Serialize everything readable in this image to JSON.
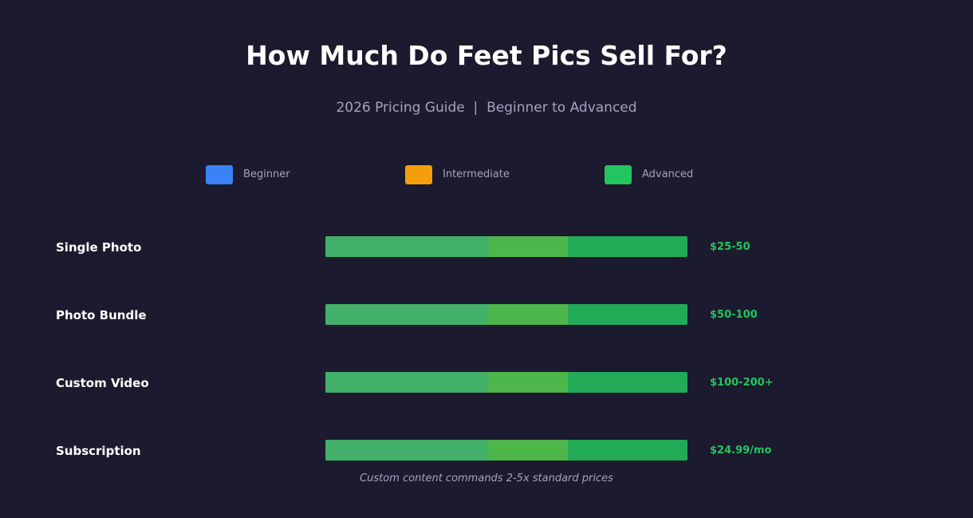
{
  "chart_data": {
    "type": "bar",
    "title": "How Much Do Feet Pics Sell For?",
    "subtitle": "2026 Pricing Guide  |  Beginner to Advanced",
    "legend": {
      "placement": "top",
      "items": [
        {
          "label": "Beginner",
          "color": "#3b82f6"
        },
        {
          "label": "Intermediate",
          "color": "#f59e0b"
        },
        {
          "label": "Advanced",
          "color": "#22c55e"
        }
      ]
    },
    "categories": [
      "Single Photo",
      "Photo Bundle",
      "Custom Video",
      "Subscription"
    ],
    "value_labels": [
      "$25-50",
      "$50-100",
      "$100-200+",
      "$24.99/mo"
    ],
    "series": [
      {
        "name": "Beginner",
        "values": [
          45,
          45,
          45,
          45
        ],
        "color": "#3b82f6"
      },
      {
        "name": "Intermediate",
        "values": [
          67,
          67,
          67,
          67
        ],
        "color": "#f59e0b"
      },
      {
        "name": "Advanced",
        "values": [
          100,
          100,
          100,
          100
        ],
        "color": "#22c55e"
      }
    ],
    "value_label_color": "#22c55e",
    "grid": false,
    "footnote": "Custom content commands 2-5x standard prices"
  }
}
